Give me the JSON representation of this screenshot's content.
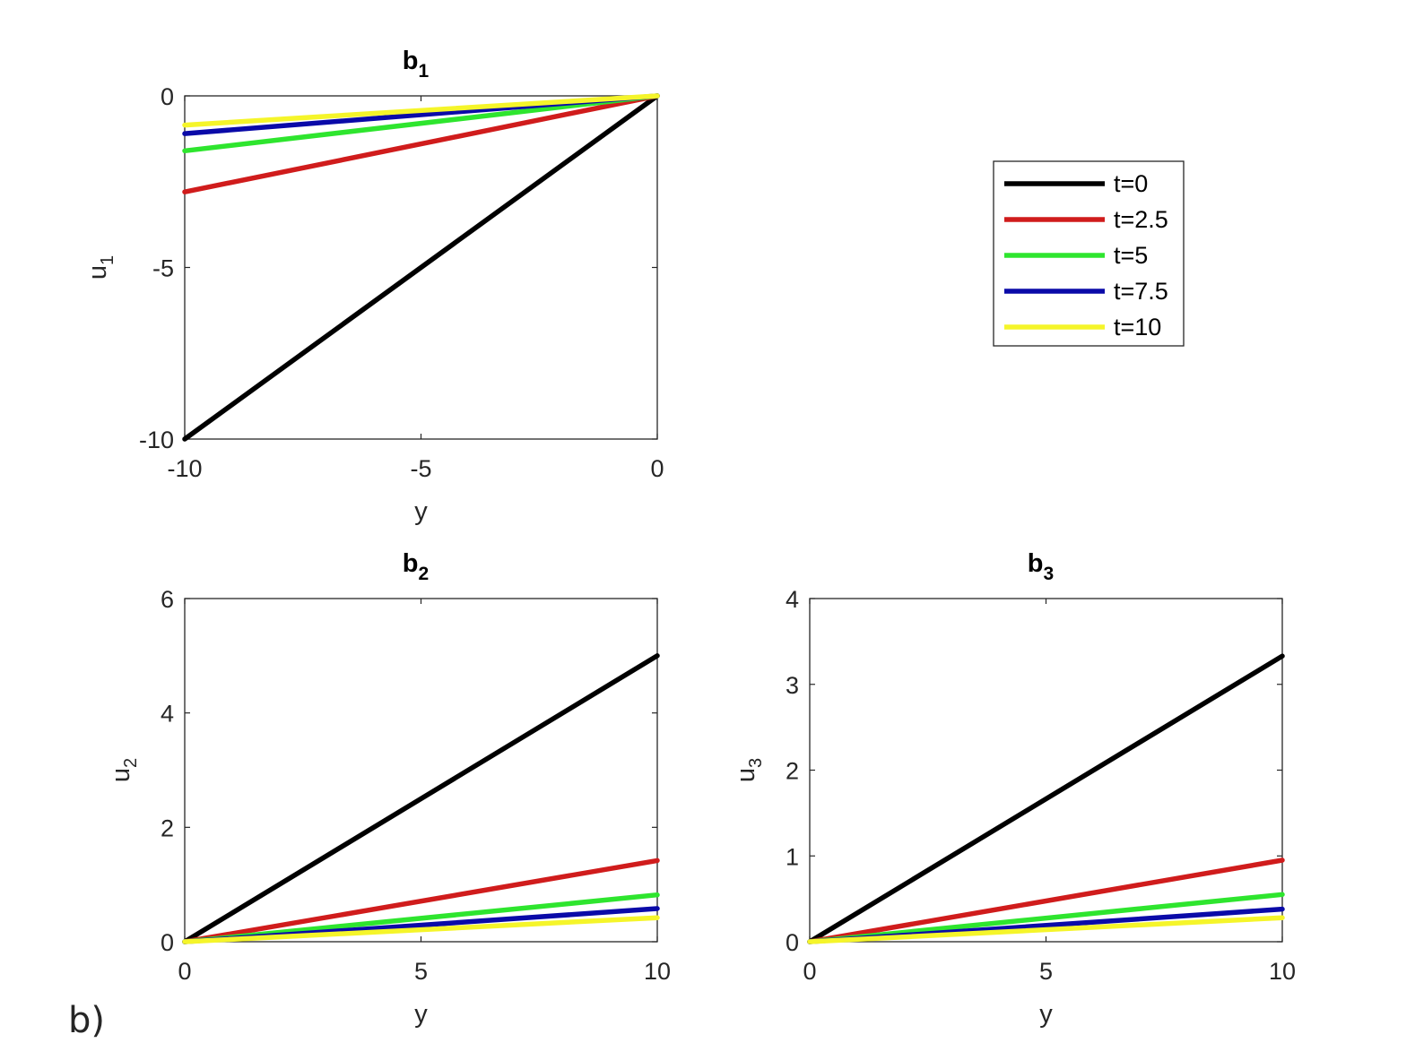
{
  "panel_label": "b)",
  "legend": {
    "entries": [
      {
        "label": "t=0",
        "color": "#000000"
      },
      {
        "label": "t=2.5",
        "color": "#d01c1c"
      },
      {
        "label": "t=5",
        "color": "#2ee52e"
      },
      {
        "label": "t=7.5",
        "color": "#0a0aa8"
      },
      {
        "label": "t=10",
        "color": "#f5f52a"
      }
    ]
  },
  "chart_data": [
    {
      "type": "line",
      "title": "b",
      "title_sub": "1",
      "xlabel": "y",
      "ylabel": "u",
      "ylabel_sub": "1",
      "xlim": [
        -10,
        0
      ],
      "ylim": [
        -10,
        0
      ],
      "xticks": [
        "-10",
        "-5",
        "0"
      ],
      "yticks": [
        "-10",
        "-5",
        "0"
      ],
      "series": [
        {
          "name": "t=0",
          "x": [
            -10,
            0
          ],
          "y": [
            -10,
            0
          ]
        },
        {
          "name": "t=2.5",
          "x": [
            -10,
            0
          ],
          "y": [
            -2.8,
            0
          ]
        },
        {
          "name": "t=5",
          "x": [
            -10,
            0
          ],
          "y": [
            -1.6,
            0
          ]
        },
        {
          "name": "t=7.5",
          "x": [
            -10,
            0
          ],
          "y": [
            -1.1,
            0
          ]
        },
        {
          "name": "t=10",
          "x": [
            -10,
            0
          ],
          "y": [
            -0.85,
            0
          ]
        }
      ]
    },
    {
      "type": "line",
      "title": "b",
      "title_sub": "2",
      "xlabel": "y",
      "ylabel": "u",
      "ylabel_sub": "2",
      "xlim": [
        0,
        10
      ],
      "ylim": [
        0,
        6
      ],
      "xticks": [
        "0",
        "5",
        "10"
      ],
      "yticks": [
        "0",
        "2",
        "4",
        "6"
      ],
      "series": [
        {
          "name": "t=0",
          "x": [
            0,
            10
          ],
          "y": [
            0,
            5
          ]
        },
        {
          "name": "t=2.5",
          "x": [
            0,
            10
          ],
          "y": [
            0,
            1.42
          ]
        },
        {
          "name": "t=5",
          "x": [
            0,
            10
          ],
          "y": [
            0,
            0.82
          ]
        },
        {
          "name": "t=7.5",
          "x": [
            0,
            10
          ],
          "y": [
            0,
            0.58
          ]
        },
        {
          "name": "t=10",
          "x": [
            0,
            10
          ],
          "y": [
            0,
            0.42
          ]
        }
      ]
    },
    {
      "type": "line",
      "title": "b",
      "title_sub": "3",
      "xlabel": "y",
      "ylabel": "u",
      "ylabel_sub": "3",
      "xlim": [
        0,
        10
      ],
      "ylim": [
        0,
        4
      ],
      "xticks": [
        "0",
        "5",
        "10"
      ],
      "yticks": [
        "0",
        "1",
        "2",
        "3",
        "4"
      ],
      "series": [
        {
          "name": "t=0",
          "x": [
            0,
            10
          ],
          "y": [
            0,
            3.33
          ]
        },
        {
          "name": "t=2.5",
          "x": [
            0,
            10
          ],
          "y": [
            0,
            0.95
          ]
        },
        {
          "name": "t=5",
          "x": [
            0,
            10
          ],
          "y": [
            0,
            0.55
          ]
        },
        {
          "name": "t=7.5",
          "x": [
            0,
            10
          ],
          "y": [
            0,
            0.38
          ]
        },
        {
          "name": "t=10",
          "x": [
            0,
            10
          ],
          "y": [
            0,
            0.28
          ]
        }
      ]
    }
  ]
}
